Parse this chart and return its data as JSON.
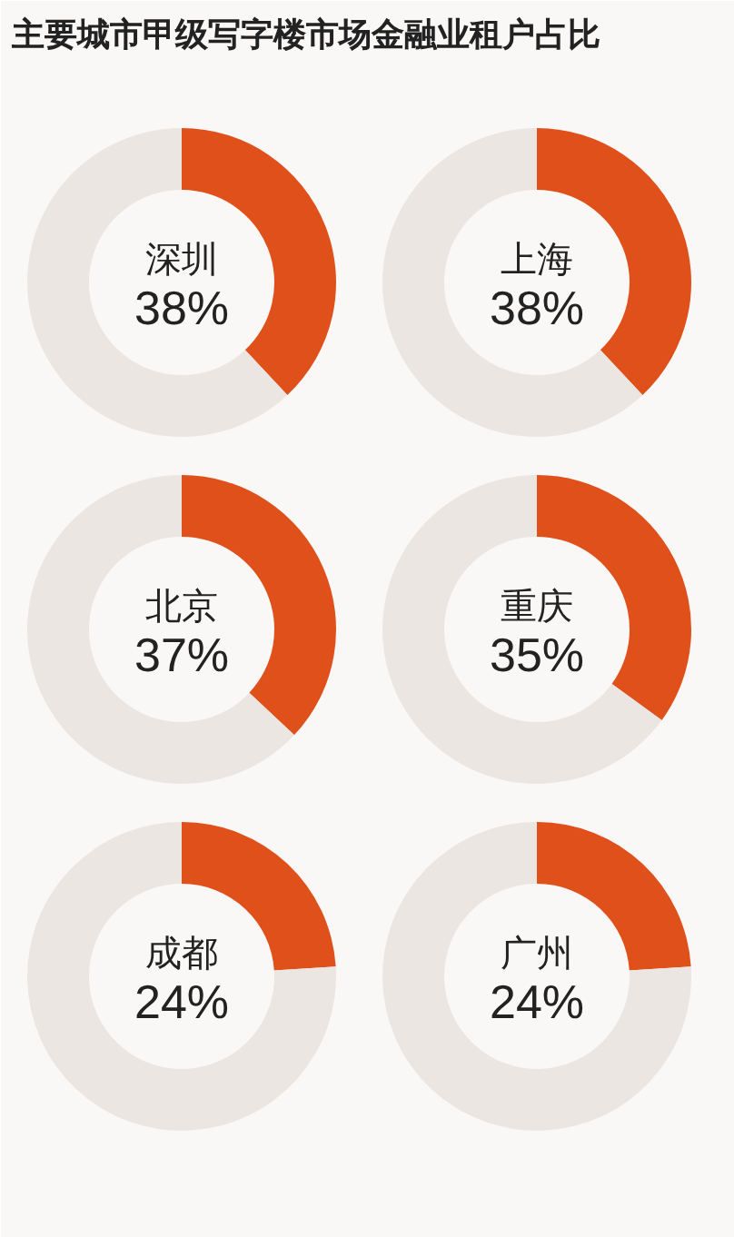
{
  "chart_data": [
    {
      "type": "donut",
      "title": "主要城市甲级写字楼市场金融业租户占比",
      "subtitle": "深圳",
      "categories": [
        null,
        null
      ],
      "values": [
        38,
        62
      ],
      "colors": [
        "#e0501a",
        "#ece6e2"
      ],
      "annotations": [
        "38%"
      ]
    },
    {
      "type": "donut",
      "subtitle": "上海",
      "categories": [
        null,
        null
      ],
      "values": [
        38,
        62
      ],
      "colors": [
        "#e0501a",
        "#ece6e2"
      ],
      "annotations": [
        "38%"
      ]
    },
    {
      "type": "donut",
      "subtitle": "北京",
      "categories": [
        null,
        null
      ],
      "values": [
        37,
        63
      ],
      "colors": [
        "#e0501a",
        "#ece6e2"
      ],
      "annotations": [
        "37%"
      ]
    },
    {
      "type": "donut",
      "subtitle": "重庆",
      "categories": [
        null,
        null
      ],
      "values": [
        35,
        65
      ],
      "colors": [
        "#e0501a",
        "#ece6e2"
      ],
      "annotations": [
        "35%"
      ]
    },
    {
      "type": "donut",
      "subtitle": "成都",
      "categories": [
        null,
        null
      ],
      "values": [
        24,
        76
      ],
      "colors": [
        "#e0501a",
        "#ece6e2"
      ],
      "annotations": [
        "24%"
      ]
    },
    {
      "type": "donut",
      "subtitle": "广州",
      "categories": [
        null,
        null
      ],
      "values": [
        24,
        76
      ],
      "colors": [
        "#e0501a",
        "#ece6e2"
      ],
      "annotations": [
        "24%"
      ]
    }
  ]
}
